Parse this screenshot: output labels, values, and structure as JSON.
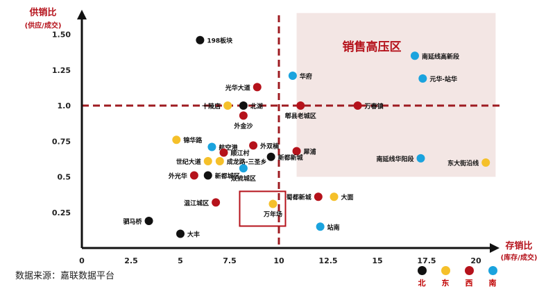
{
  "chart_data": {
    "type": "scatter",
    "ylabel_line1": "供销比",
    "ylabel_line2": "(供应/成交)",
    "xlabel_line1": "存销比",
    "xlabel_line2": "(库存/成交)",
    "xlim": [
      0,
      22
    ],
    "ylim": [
      0,
      1.72
    ],
    "x_ticks": [
      {
        "value": 0,
        "label": "0"
      },
      {
        "value": 2.5,
        "label": "2.5"
      },
      {
        "value": 5,
        "label": "5"
      },
      {
        "value": 7.5,
        "label": "7.5"
      },
      {
        "value": 10,
        "label": "10"
      },
      {
        "value": 12.5,
        "label": "12.5"
      },
      {
        "value": 15,
        "label": "15"
      },
      {
        "value": 17.5,
        "label": "17.5"
      },
      {
        "value": 20,
        "label": "20"
      }
    ],
    "y_ticks": [
      {
        "value": 0.25,
        "label": "0.25"
      },
      {
        "value": 0.5,
        "label": "0.5"
      },
      {
        "value": 0.75,
        "label": "0.75"
      },
      {
        "value": 1.0,
        "label": "1.0"
      },
      {
        "value": 1.25,
        "label": "1.25"
      },
      {
        "value": 1.5,
        "label": "1.50"
      }
    ],
    "ref_lines": {
      "x": 10,
      "y": 1.0
    },
    "zone": {
      "label": "销售高压区",
      "x0": 10.9,
      "x1": 21.0,
      "y0": 0.5,
      "y1": 1.65
    },
    "categories": {
      "north": {
        "label": "北",
        "color": "#111111"
      },
      "east": {
        "label": "东",
        "color": "#f5c02a"
      },
      "west": {
        "label": "西",
        "color": "#b5121b"
      },
      "south": {
        "label": "南",
        "color": "#1aa3de"
      }
    },
    "points": [
      {
        "label": "198板块",
        "x": 6.0,
        "y": 1.46,
        "cat": "north"
      },
      {
        "label": "华府",
        "x": 10.7,
        "y": 1.21,
        "cat": "south"
      },
      {
        "label": "南延线高新段",
        "x": 16.9,
        "y": 1.35,
        "cat": "south"
      },
      {
        "label": "元华-站华",
        "x": 17.3,
        "y": 1.19,
        "cat": "south"
      },
      {
        "label": "光华大道",
        "x": 8.9,
        "y": 1.13,
        "cat": "west"
      },
      {
        "label": "十陵店",
        "x": 7.4,
        "y": 1.0,
        "cat": "east"
      },
      {
        "label": "北湖",
        "x": 8.2,
        "y": 1.0,
        "cat": "north"
      },
      {
        "label": "郫县老城区",
        "x": 11.1,
        "y": 1.0,
        "cat": "west"
      },
      {
        "label": "万春镇",
        "x": 14.0,
        "y": 1.0,
        "cat": "west"
      },
      {
        "label": "外金沙",
        "x": 8.2,
        "y": 0.93,
        "cat": "west"
      },
      {
        "label": "锦华路",
        "x": 4.8,
        "y": 0.76,
        "cat": "east"
      },
      {
        "label": "航空港",
        "x": 6.6,
        "y": 0.71,
        "cat": "south"
      },
      {
        "label": "外双楠",
        "x": 8.7,
        "y": 0.72,
        "cat": "west"
      },
      {
        "label": "犀浦",
        "x": 10.9,
        "y": 0.68,
        "cat": "west"
      },
      {
        "label": "顺江村",
        "x": 7.2,
        "y": 0.67,
        "cat": "west"
      },
      {
        "label": "新都新城",
        "x": 9.6,
        "y": 0.64,
        "cat": "north"
      },
      {
        "label": "世纪大道",
        "x": 6.4,
        "y": 0.61,
        "cat": "east"
      },
      {
        "label": "成龙路-三圣乡",
        "x": 7.0,
        "y": 0.61,
        "cat": "east"
      },
      {
        "label": "双流城区",
        "x": 8.2,
        "y": 0.56,
        "cat": "south"
      },
      {
        "label": "外光华",
        "x": 5.7,
        "y": 0.51,
        "cat": "west"
      },
      {
        "label": "新都城区",
        "x": 6.4,
        "y": 0.51,
        "cat": "north"
      },
      {
        "label": "南延线华阳段",
        "x": 17.2,
        "y": 0.63,
        "cat": "south"
      },
      {
        "label": "东大街沿线",
        "x": 20.5,
        "y": 0.6,
        "cat": "east"
      },
      {
        "label": "温江城区",
        "x": 6.8,
        "y": 0.32,
        "cat": "west"
      },
      {
        "label": "万年场",
        "x": 9.7,
        "y": 0.31,
        "cat": "east"
      },
      {
        "label": "蜀都新城",
        "x": 12.0,
        "y": 0.36,
        "cat": "west"
      },
      {
        "label": "大面",
        "x": 12.8,
        "y": 0.36,
        "cat": "east"
      },
      {
        "label": "驷马桥",
        "x": 3.4,
        "y": 0.19,
        "cat": "north"
      },
      {
        "label": "站南",
        "x": 12.1,
        "y": 0.15,
        "cat": "south"
      },
      {
        "label": "大丰",
        "x": 5.0,
        "y": 0.1,
        "cat": "north"
      }
    ]
  },
  "source_text": "数据来源：嘉联数据平台",
  "legend_order": [
    "north",
    "east",
    "west",
    "south"
  ]
}
